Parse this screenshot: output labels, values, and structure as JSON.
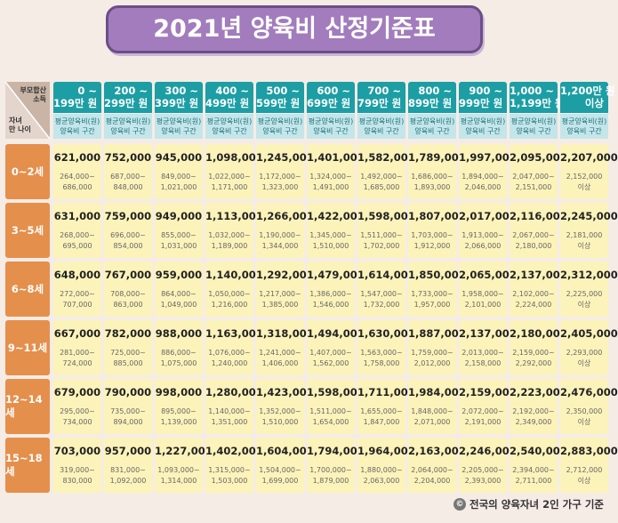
{
  "title": "2021년 양육비 산정기준표",
  "corner": {
    "top": "부모합산\n소득",
    "bottom": "자녀\n만 나이"
  },
  "sub_label": "평균양육비(원)\n양육비 구간",
  "columns": [
    "0 ~\n199만 원",
    "200 ~\n299만 원",
    "300 ~\n399만 원",
    "400 ~\n499만 원",
    "500 ~\n599만 원",
    "600 ~\n699만 원",
    "700 ~\n799만 원",
    "800 ~\n899만 원",
    "900 ~\n999만 원",
    "1,000 ~\n1,199만 원",
    "1,200만 원\n이상"
  ],
  "rows": [
    {
      "age": "0~2세",
      "avg": [
        "621,000",
        "752,000",
        "945,000",
        "1,098,000",
        "1,245,000",
        "1,401,000",
        "1,582,000",
        "1,789,000",
        "1,997,000",
        "2,095,000",
        "2,207,000"
      ],
      "range": [
        "264,000~\n686,000",
        "687,000~\n848,000",
        "849,000~\n1,021,000",
        "1,022,000~\n1,171,000",
        "1,172,000~\n1,323,000",
        "1,324,000~\n1,491,000",
        "1,492,000~\n1,685,000",
        "1,686,000~\n1,893,000",
        "1,894,000~\n2,046,000",
        "2,047,000~\n2,151,000",
        "2,152,000\n이상"
      ]
    },
    {
      "age": "3~5세",
      "avg": [
        "631,000",
        "759,000",
        "949,000",
        "1,113,000",
        "1,266,000",
        "1,422,000",
        "1,598,000",
        "1,807,000",
        "2,017,000",
        "2,116,000",
        "2,245,000"
      ],
      "range": [
        "268,000~\n695,000",
        "696,000~\n854,000",
        "855,000~\n1,031,000",
        "1,032,000~\n1,189,000",
        "1,190,000~\n1,344,000",
        "1,345,000~\n1,510,000",
        "1,511,000~\n1,702,000",
        "1,703,000~\n1,912,000",
        "1,913,000~\n2,066,000",
        "2,067,000~\n2,180,000",
        "2,181,000\n이상"
      ]
    },
    {
      "age": "6~8세",
      "avg": [
        "648,000",
        "767,000",
        "959,000",
        "1,140,000",
        "1,292,000",
        "1,479,000",
        "1,614,000",
        "1,850,000",
        "2,065,000",
        "2,137,000",
        "2,312,000"
      ],
      "range": [
        "272,000~\n707,000",
        "708,000~\n863,000",
        "864,000~\n1,049,000",
        "1,050,000~\n1,216,000",
        "1,217,000~\n1,385,000",
        "1,386,000~\n1,546,000",
        "1,547,000~\n1,732,000",
        "1,733,000~\n1,957,000",
        "1,958,000~\n2,101,000",
        "2,102,000~\n2,224,000",
        "2,225,000\n이상"
      ]
    },
    {
      "age": "9~11세",
      "avg": [
        "667,000",
        "782,000",
        "988,000",
        "1,163,000",
        "1,318,000",
        "1,494,000",
        "1,630,000",
        "1,887,000",
        "2,137,000",
        "2,180,000",
        "2,405,000"
      ],
      "range": [
        "281,000~\n724,000",
        "725,000~\n885,000",
        "886,000~\n1,075,000",
        "1,076,000~\n1,240,000",
        "1,241,000~\n1,406,000",
        "1,407,000~\n1,562,000",
        "1,563,000~\n1,758,000",
        "1,759,000~\n2,012,000",
        "2,013,000~\n2,158,000",
        "2,159,000~\n2,292,000",
        "2,293,000\n이상"
      ]
    },
    {
      "age": "12~14세",
      "avg": [
        "679,000",
        "790,000",
        "998,000",
        "1,280,000",
        "1,423,000",
        "1,598,000",
        "1,711,000",
        "1,984,000",
        "2,159,000",
        "2,223,000",
        "2,476,000"
      ],
      "range": [
        "295,000~\n734,000",
        "735,000~\n894,000",
        "895,000~\n1,139,000",
        "1,140,000~\n1,351,000",
        "1,352,000~\n1,510,000",
        "1,511,000~\n1,654,000",
        "1,655,000~\n1,847,000",
        "1,848,000~\n2,071,000",
        "2,072,000~\n2,191,000",
        "2,192,000~\n2,349,000",
        "2,350,000\n이상"
      ]
    },
    {
      "age": "15~18세",
      "avg": [
        "703,000",
        "957,000",
        "1,227,000",
        "1,402,000",
        "1,604,000",
        "1,794,000",
        "1,964,000",
        "2,163,000",
        "2,246,000",
        "2,540,000",
        "2,883,000"
      ],
      "range": [
        "319,000~\n830,000",
        "831,000~\n1,092,000",
        "1,093,000~\n1,314,000",
        "1,315,000~\n1,503,000",
        "1,504,000~\n1,699,000",
        "1,700,000~\n1,879,000",
        "1,880,000~\n2,063,000",
        "2,064,000~\n2,204,000",
        "2,205,000~\n2,393,000",
        "2,394,000~\n2,711,000",
        "2,712,000\n이상"
      ]
    }
  ],
  "footer": "전국의 양육자녀 2인 가구 기준",
  "colors": {
    "header_teal": "#1c9ea4",
    "sub_header": "#c4e6ea",
    "age_orange": "#e58f4c",
    "cell_yellow": "#fcf3bb",
    "title_purple": "#a27cbd"
  }
}
